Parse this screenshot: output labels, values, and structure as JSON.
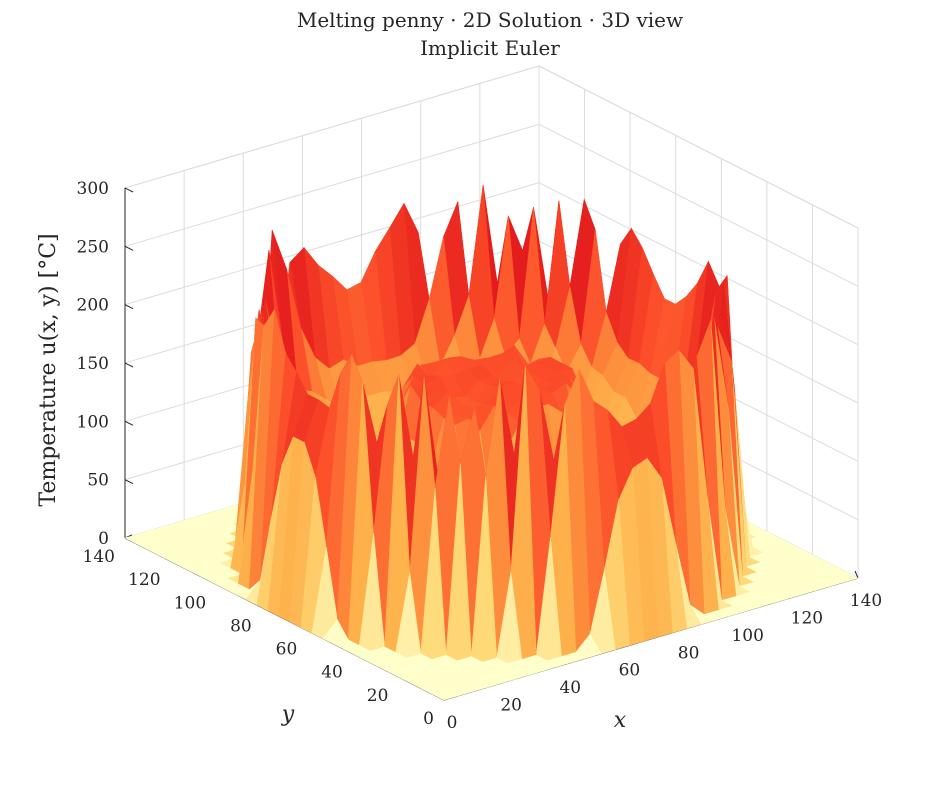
{
  "chart_data": {
    "type": "surface",
    "title": "Melting penny · 2D Solution · 3D view",
    "subtitle": "Implicit Euler",
    "xlabel": "x",
    "ylabel": "y",
    "zlabel": "Temperature u(x, y) [°C]",
    "xlim": [
      0,
      140
    ],
    "ylim": [
      0,
      140
    ],
    "zlim": [
      0,
      300
    ],
    "x_ticks": [
      0,
      20,
      40,
      60,
      80,
      100,
      120,
      140
    ],
    "y_ticks": [
      0,
      20,
      40,
      60,
      80,
      100,
      120,
      140
    ],
    "z_ticks": [
      0,
      50,
      100,
      150,
      200,
      250,
      300
    ],
    "grid": true,
    "colormap": [
      "#ffffcc",
      "#fed976",
      "#feb24c",
      "#fd8d3c",
      "#fc4e2a",
      "#e31a1c",
      "#bd0026",
      "#800026"
    ],
    "grid_resolution": 29,
    "description_values": {
      "background_level": 0,
      "rim_plateau_max": 262,
      "inner_face_level": 200,
      "central_plateau_level": 150,
      "corner_peak": 205
    }
  }
}
